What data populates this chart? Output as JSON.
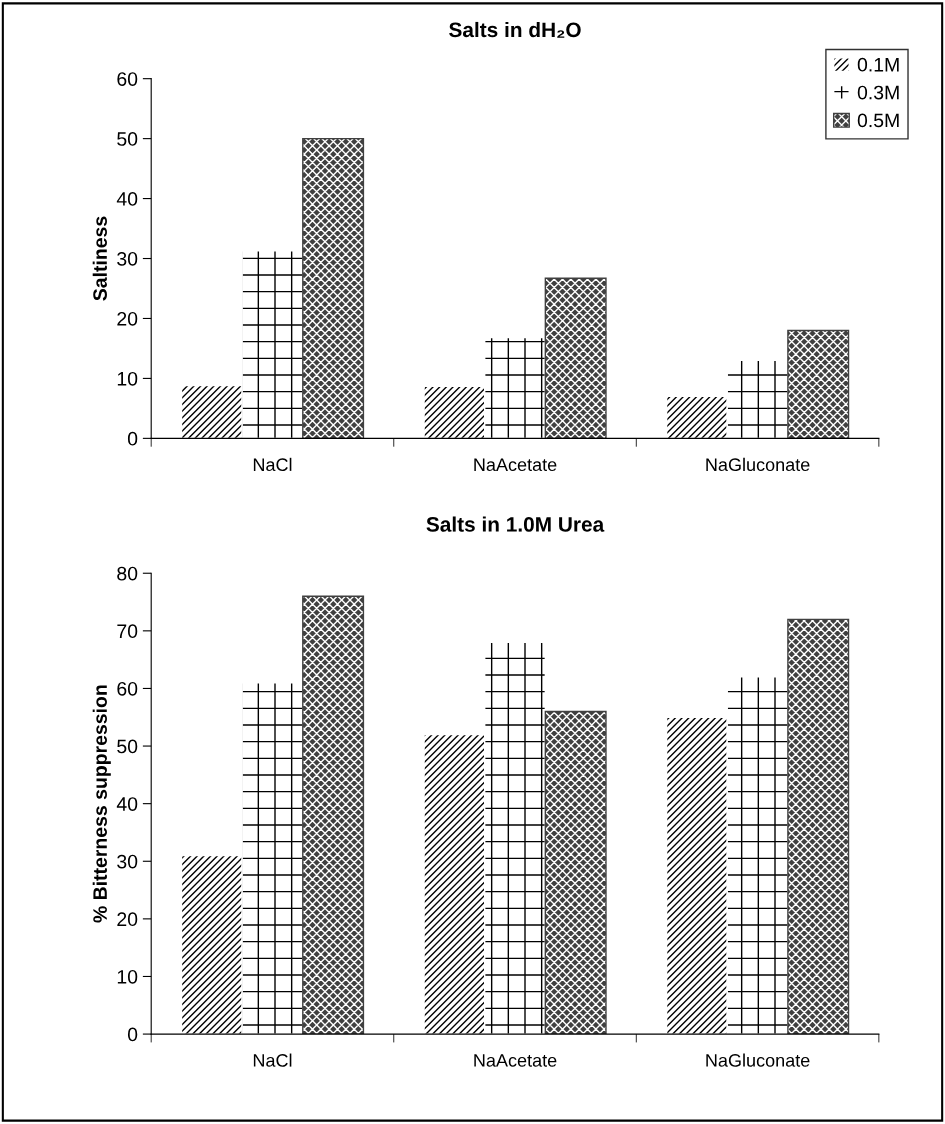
{
  "chart_data": [
    {
      "type": "bar",
      "title": "Salts in dH₂O",
      "ylabel": "Saltiness",
      "categories": [
        "NaCl",
        "NaAcetate",
        "NaGluconate"
      ],
      "series": [
        {
          "name": "0.1M",
          "color": "#ffffff",
          "values": [
            8.8,
            8.7,
            7
          ]
        },
        {
          "name": "0.3M",
          "color": "#ffffff",
          "values": [
            31.3,
            16.8,
            13
          ]
        },
        {
          "name": "0.5M",
          "color": "#404040",
          "values": [
            50,
            26.7,
            18
          ]
        }
      ],
      "ylim": [
        0,
        60
      ],
      "yticks": [
        0,
        10,
        20,
        30,
        40,
        50,
        60
      ],
      "grid": false,
      "legend": "top right"
    },
    {
      "type": "bar",
      "title": "Salts in 1.0M Urea",
      "ylabel": "% Bitterness suppression",
      "categories": [
        "NaCl",
        "NaAcetate",
        "NaGluconate"
      ],
      "series": [
        {
          "color": "#ffffff",
          "values": [
            31,
            52,
            55
          ]
        },
        {
          "color": "#ffffff",
          "values": [
            61,
            68,
            62
          ]
        },
        {
          "color": "#404040",
          "values": [
            76,
            56,
            72
          ]
        }
      ],
      "ylim": [
        0,
        80
      ],
      "yticks": [
        0,
        10,
        20,
        30,
        40,
        50,
        60,
        70,
        80
      ],
      "grid": false,
      "legend": false
    }
  ]
}
